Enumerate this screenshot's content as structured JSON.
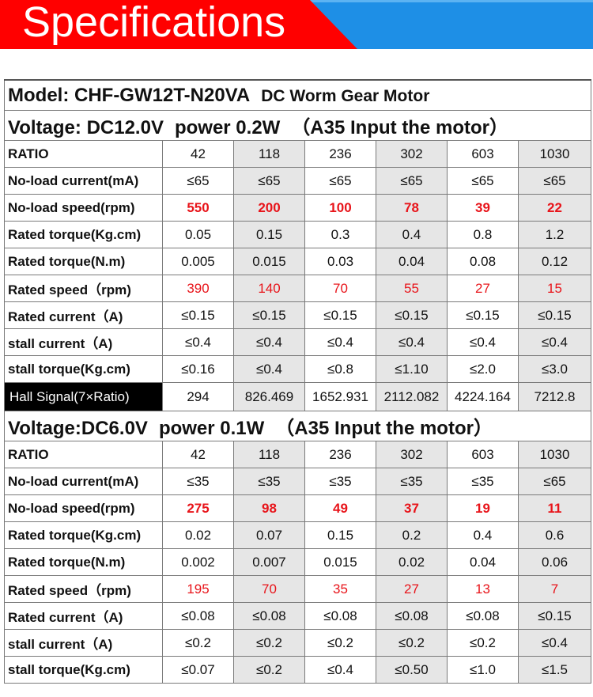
{
  "banner": {
    "title": "Specifications",
    "colors": {
      "red": "#ff0000",
      "blue": "#1e8fe6"
    }
  },
  "model_line": {
    "model": "Model: CHF-GW12T-N20VA",
    "type": "DC Worm Gear Motor"
  },
  "sections": [
    {
      "voltage": "Voltage: DC12.0V",
      "power": "power 0.2W",
      "input": "（A35 Input the motor）",
      "rows": [
        {
          "label": "RATIO",
          "values": [
            "42",
            "118",
            "236",
            "302",
            "603",
            "1030"
          ]
        },
        {
          "label": "No-load current(mA)",
          "values": [
            "≤65",
            "≤65",
            "≤65",
            "≤65",
            "≤65",
            "≤65"
          ]
        },
        {
          "label": "No-load speed(rpm)",
          "values": [
            "550",
            "200",
            "100",
            "78",
            "39",
            "22"
          ]
        },
        {
          "label": "Rated torque(Kg.cm)",
          "values": [
            "0.05",
            "0.15",
            "0.3",
            "0.4",
            "0.8",
            "1.2"
          ]
        },
        {
          "label": "Rated torque(N.m)",
          "values": [
            "0.005",
            "0.015",
            "0.03",
            "0.04",
            "0.08",
            "0.12"
          ]
        },
        {
          "label": "Rated speed（rpm)",
          "values": [
            "390",
            "140",
            "70",
            "55",
            "27",
            "15"
          ]
        },
        {
          "label": "Rated current（A)",
          "values": [
            "≤0.15",
            "≤0.15",
            "≤0.15",
            "≤0.15",
            "≤0.15",
            "≤0.15"
          ]
        },
        {
          "label": "stall current（A)",
          "values": [
            "≤0.4",
            "≤0.4",
            "≤0.4",
            "≤0.4",
            "≤0.4",
            "≤0.4"
          ]
        },
        {
          "label": "stall torque(Kg.cm)",
          "values": [
            "≤0.16",
            "≤0.4",
            "≤0.8",
            "≤1.10",
            "≤2.0",
            "≤3.0"
          ]
        }
      ],
      "hall": {
        "label": "Hall Signal(7×Ratio)",
        "values": [
          "294",
          "826.469",
          "1652.931",
          "2112.082",
          "4224.164",
          "7212.8"
        ]
      }
    },
    {
      "voltage": "Voltage:DC6.0V",
      "power": "power 0.1W",
      "input": "（A35 Input the motor）",
      "rows": [
        {
          "label": "RATIO",
          "values": [
            "42",
            "118",
            "236",
            "302",
            "603",
            "1030"
          ]
        },
        {
          "label": "No-load current(mA)",
          "values": [
            "≤35",
            "≤35",
            "≤35",
            "≤35",
            "≤35",
            "≤65"
          ]
        },
        {
          "label": "No-load speed(rpm)",
          "values": [
            "275",
            "98",
            "49",
            "37",
            "19",
            "11"
          ]
        },
        {
          "label": "Rated torque(Kg.cm)",
          "values": [
            "0.02",
            "0.07",
            "0.15",
            "0.2",
            "0.4",
            "0.6"
          ]
        },
        {
          "label": "Rated torque(N.m)",
          "values": [
            "0.002",
            "0.007",
            "0.015",
            "0.02",
            "0.04",
            "0.06"
          ]
        },
        {
          "label": "Rated speed（rpm)",
          "values": [
            "195",
            "70",
            "35",
            "27",
            "13",
            "7"
          ]
        },
        {
          "label": "Rated current（A)",
          "values": [
            "≤0.08",
            "≤0.08",
            "≤0.08",
            "≤0.08",
            "≤0.08",
            "≤0.15"
          ]
        },
        {
          "label": "stall current（A)",
          "values": [
            "≤0.2",
            "≤0.2",
            "≤0.2",
            "≤0.2",
            "≤0.2",
            "≤0.4"
          ]
        },
        {
          "label": "stall torque(Kg.cm)",
          "values": [
            "≤0.07",
            "≤0.2",
            "≤0.4",
            "≤0.50",
            "≤1.0",
            "≤1.5"
          ]
        }
      ]
    }
  ]
}
